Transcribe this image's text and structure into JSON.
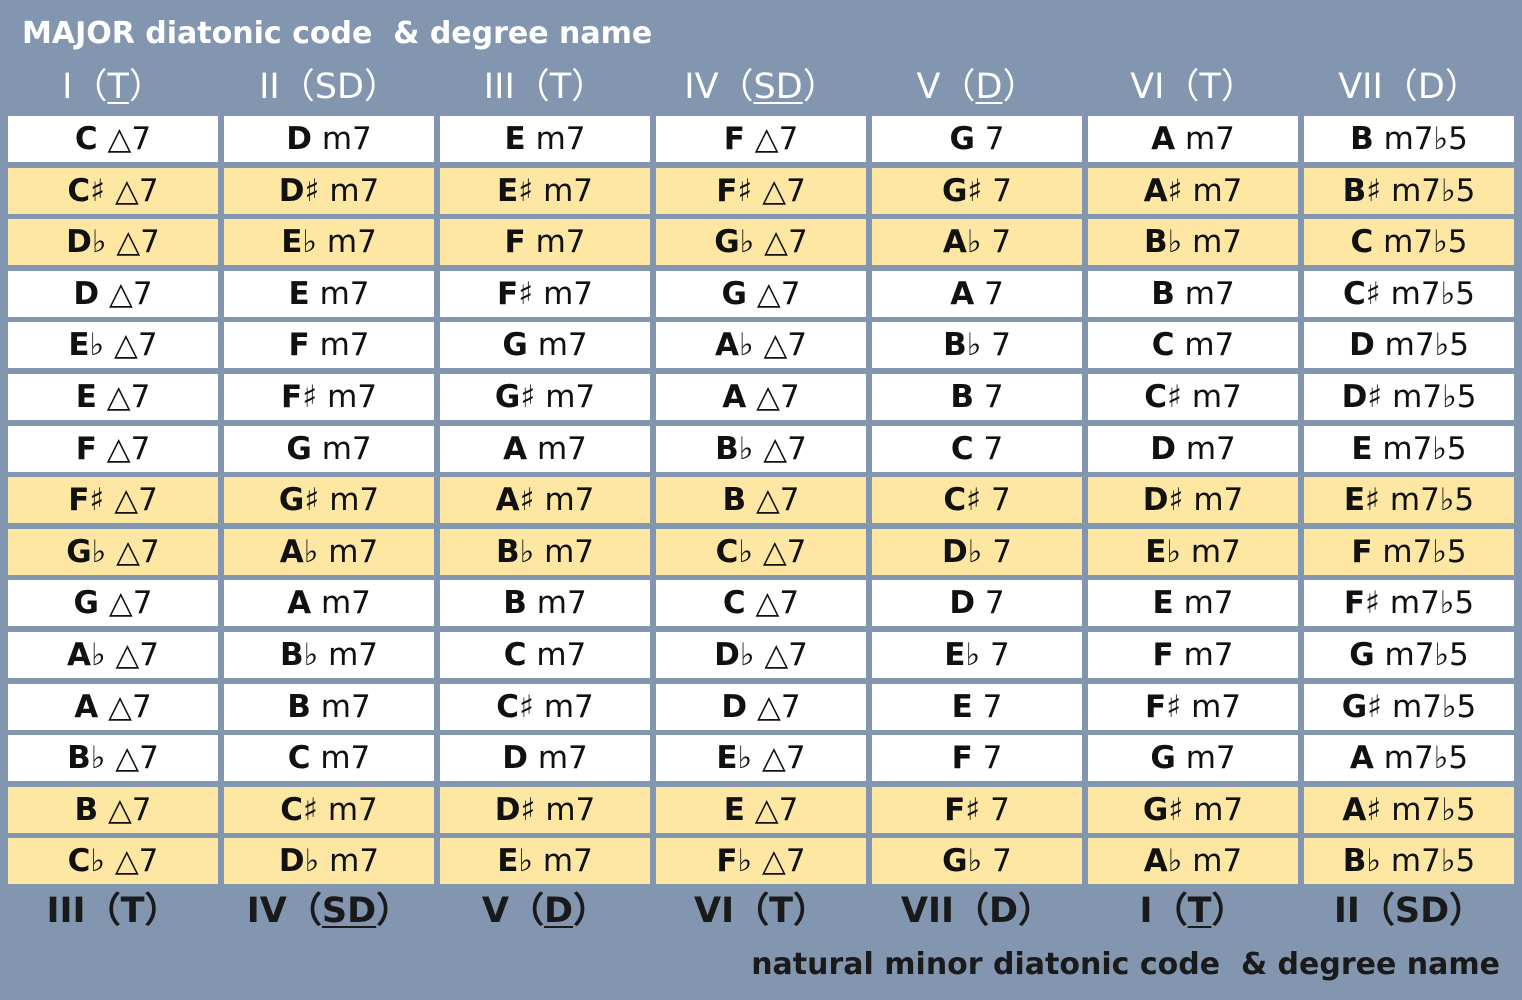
{
  "title": "MAJOR diatonic code  & degree name",
  "footer_title": "natural minor diatonic code  & degree name",
  "major_degrees": [
    {
      "numeral": "I",
      "function": "T",
      "underlined": true
    },
    {
      "numeral": "II",
      "function": "SD",
      "underlined": false
    },
    {
      "numeral": "III",
      "function": "T",
      "underlined": false
    },
    {
      "numeral": "IV",
      "function": "SD",
      "underlined": true
    },
    {
      "numeral": "V",
      "function": "D",
      "underlined": true
    },
    {
      "numeral": "VI",
      "function": "T",
      "underlined": false
    },
    {
      "numeral": "VII",
      "function": "D",
      "underlined": false
    }
  ],
  "minor_degrees": [
    {
      "numeral": "III",
      "function": "T",
      "underlined": false
    },
    {
      "numeral": "IV",
      "function": "SD",
      "underlined": true
    },
    {
      "numeral": "V",
      "function": "D",
      "underlined": true
    },
    {
      "numeral": "VI",
      "function": "T",
      "underlined": false
    },
    {
      "numeral": "VII",
      "function": "D",
      "underlined": false
    },
    {
      "numeral": "I",
      "function": "T",
      "underlined": true
    },
    {
      "numeral": "II",
      "function": "SD",
      "underlined": false
    }
  ],
  "colors": {
    "highlight": "#fde7a2",
    "normal": "#ffffff",
    "background": "#8396b0"
  },
  "rows": [
    {
      "highlight": false,
      "chords": [
        [
          "C",
          "△7"
        ],
        [
          "D",
          "m7"
        ],
        [
          "E",
          "m7"
        ],
        [
          "F",
          "△7"
        ],
        [
          "G",
          "7"
        ],
        [
          "A",
          "m7"
        ],
        [
          "B",
          "m7♭5"
        ]
      ]
    },
    {
      "highlight": true,
      "chords": [
        [
          "C♯",
          "△7"
        ],
        [
          "D♯",
          "m7"
        ],
        [
          "E♯",
          "m7"
        ],
        [
          "F♯",
          "△7"
        ],
        [
          "G♯",
          "7"
        ],
        [
          "A♯",
          "m7"
        ],
        [
          "B♯",
          "m7♭5"
        ]
      ]
    },
    {
      "highlight": true,
      "chords": [
        [
          "D♭",
          "△7"
        ],
        [
          "E♭",
          "m7"
        ],
        [
          "F",
          "m7"
        ],
        [
          "G♭",
          "△7"
        ],
        [
          "A♭",
          "7"
        ],
        [
          "B♭",
          "m7"
        ],
        [
          "C",
          "m7♭5"
        ]
      ]
    },
    {
      "highlight": false,
      "chords": [
        [
          "D",
          "△7"
        ],
        [
          "E",
          "m7"
        ],
        [
          "F♯",
          "m7"
        ],
        [
          "G",
          "△7"
        ],
        [
          "A",
          "7"
        ],
        [
          "B",
          "m7"
        ],
        [
          "C♯",
          "m7♭5"
        ]
      ]
    },
    {
      "highlight": false,
      "chords": [
        [
          "E♭",
          "△7"
        ],
        [
          "F",
          "m7"
        ],
        [
          "G",
          "m7"
        ],
        [
          "A♭",
          "△7"
        ],
        [
          "B♭",
          "7"
        ],
        [
          "C",
          "m7"
        ],
        [
          "D",
          "m7♭5"
        ]
      ]
    },
    {
      "highlight": false,
      "chords": [
        [
          "E",
          "△7"
        ],
        [
          "F♯",
          "m7"
        ],
        [
          "G♯",
          "m7"
        ],
        [
          "A",
          "△7"
        ],
        [
          "B",
          "7"
        ],
        [
          "C♯",
          "m7"
        ],
        [
          "D♯",
          "m7♭5"
        ]
      ]
    },
    {
      "highlight": false,
      "chords": [
        [
          "F",
          "△7"
        ],
        [
          "G",
          "m7"
        ],
        [
          "A",
          "m7"
        ],
        [
          "B♭",
          "△7"
        ],
        [
          "C",
          "7"
        ],
        [
          "D",
          "m7"
        ],
        [
          "E",
          "m7♭5"
        ]
      ]
    },
    {
      "highlight": true,
      "chords": [
        [
          "F♯",
          "△7"
        ],
        [
          "G♯",
          "m7"
        ],
        [
          "A♯",
          "m7"
        ],
        [
          "B",
          "△7"
        ],
        [
          "C♯",
          "7"
        ],
        [
          "D♯",
          "m7"
        ],
        [
          "E♯",
          "m7♭5"
        ]
      ]
    },
    {
      "highlight": true,
      "chords": [
        [
          "G♭",
          "△7"
        ],
        [
          "A♭",
          "m7"
        ],
        [
          "B♭",
          "m7"
        ],
        [
          "C♭",
          "△7"
        ],
        [
          "D♭",
          "7"
        ],
        [
          "E♭",
          "m7"
        ],
        [
          "F",
          "m7♭5"
        ]
      ]
    },
    {
      "highlight": false,
      "chords": [
        [
          "G",
          "△7"
        ],
        [
          "A",
          "m7"
        ],
        [
          "B",
          "m7"
        ],
        [
          "C",
          "△7"
        ],
        [
          "D",
          "7"
        ],
        [
          "E",
          "m7"
        ],
        [
          "F♯",
          "m7♭5"
        ]
      ]
    },
    {
      "highlight": false,
      "chords": [
        [
          "A♭",
          "△7"
        ],
        [
          "B♭",
          "m7"
        ],
        [
          "C",
          "m7"
        ],
        [
          "D♭",
          "△7"
        ],
        [
          "E♭",
          "7"
        ],
        [
          "F",
          "m7"
        ],
        [
          "G",
          "m7♭5"
        ]
      ]
    },
    {
      "highlight": false,
      "chords": [
        [
          "A",
          "△7"
        ],
        [
          "B",
          "m7"
        ],
        [
          "C♯",
          "m7"
        ],
        [
          "D",
          "△7"
        ],
        [
          "E",
          "7"
        ],
        [
          "F♯",
          "m7"
        ],
        [
          "G♯",
          "m7♭5"
        ]
      ]
    },
    {
      "highlight": false,
      "chords": [
        [
          "B♭",
          "△7"
        ],
        [
          "C",
          "m7"
        ],
        [
          "D",
          "m7"
        ],
        [
          "E♭",
          "△7"
        ],
        [
          "F",
          "7"
        ],
        [
          "G",
          "m7"
        ],
        [
          "A",
          "m7♭5"
        ]
      ]
    },
    {
      "highlight": true,
      "chords": [
        [
          "B",
          "△7"
        ],
        [
          "C♯",
          "m7"
        ],
        [
          "D♯",
          "m7"
        ],
        [
          "E",
          "△7"
        ],
        [
          "F♯",
          "7"
        ],
        [
          "G♯",
          "m7"
        ],
        [
          "A♯",
          "m7♭5"
        ]
      ]
    },
    {
      "highlight": true,
      "chords": [
        [
          "C♭",
          "△7"
        ],
        [
          "D♭",
          "m7"
        ],
        [
          "E♭",
          "m7"
        ],
        [
          "F♭",
          "△7"
        ],
        [
          "G♭",
          "7"
        ],
        [
          "A♭",
          "m7"
        ],
        [
          "B♭",
          "m7♭5"
        ]
      ]
    }
  ]
}
